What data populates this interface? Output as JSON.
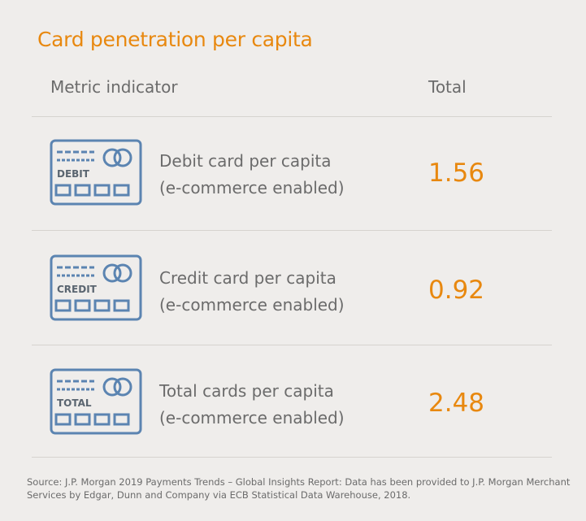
{
  "chart_data": {
    "type": "table",
    "title": "Card penetration per capita",
    "columns": [
      "Metric indicator",
      "Total"
    ],
    "rows": [
      {
        "icon": "debit-card-icon",
        "card_text": "DEBIT",
        "line1": "Debit card per capita",
        "line2": "(e-commerce enabled)",
        "value": "1.56"
      },
      {
        "icon": "credit-card-icon",
        "card_text": "CREDIT",
        "line1": "Credit card per capita",
        "line2": "(e-commerce enabled)",
        "value": "0.92"
      },
      {
        "icon": "total-card-icon",
        "card_text": "TOTAL",
        "line1": "Total cards per capita",
        "line2": "(e-commerce enabled)",
        "value": "2.48"
      }
    ],
    "source": "Source: J.P. Morgan 2019 Payments Trends – Global Insights Report: Data has been provided to J.P. Morgan Merchant Services by Edgar, Dunn and Company via ECB Statistical Data Warehouse, 2018."
  },
  "colors": {
    "accent": "#e8880f",
    "icon_blue": "#5b84b1",
    "text": "#6b6b6b",
    "background": "#efedeb"
  }
}
